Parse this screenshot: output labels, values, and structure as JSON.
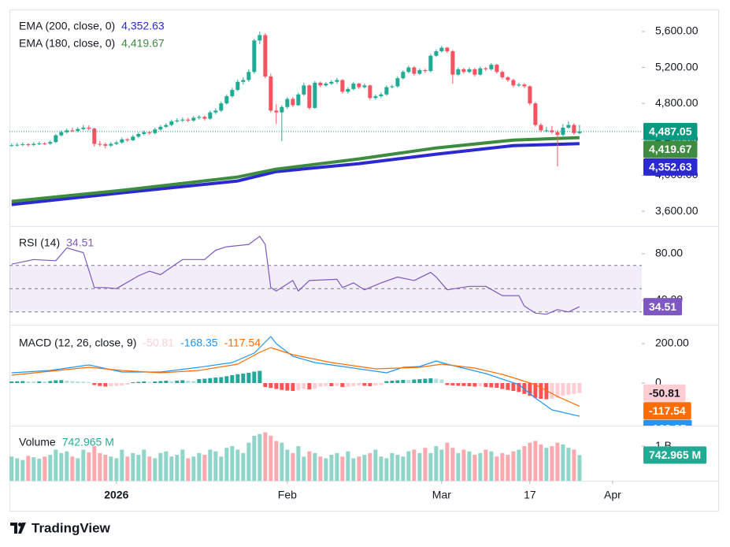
{
  "chart_data": [
    {
      "type": "candlestick",
      "ylim": [
        3434,
        5845
      ],
      "yticks": [
        {
          "value": 3600,
          "label": "3,600.00"
        },
        {
          "value": 4000,
          "label": "4,000.00"
        },
        {
          "value": 4400,
          "label": "4,400.00"
        },
        {
          "value": 4800,
          "label": "4,800.00"
        },
        {
          "value": 5200,
          "label": "5,200.00"
        },
        {
          "value": 5600,
          "label": "5,600.00"
        }
      ],
      "up_color": "#22ab94",
      "down_color": "#f7525f",
      "last_color": "#089981",
      "ohlc": [
        [
          4330,
          4355,
          4315,
          4335
        ],
        [
          4335,
          4360,
          4320,
          4340
        ],
        [
          4340,
          4365,
          4325,
          4345
        ],
        [
          4345,
          4360,
          4320,
          4338
        ],
        [
          4338,
          4370,
          4325,
          4350
        ],
        [
          4350,
          4375,
          4335,
          4355
        ],
        [
          4355,
          4370,
          4335,
          4352
        ],
        [
          4352,
          4390,
          4340,
          4370
        ],
        [
          4370,
          4460,
          4360,
          4445
        ],
        [
          4445,
          4500,
          4430,
          4480
        ],
        [
          4480,
          4520,
          4465,
          4500
        ],
        [
          4500,
          4530,
          4480,
          4495
        ],
        [
          4495,
          4535,
          4480,
          4515
        ],
        [
          4515,
          4560,
          4500,
          4530
        ],
        [
          4530,
          4555,
          4500,
          4520
        ],
        [
          4520,
          4530,
          4320,
          4350
        ],
        [
          4350,
          4380,
          4320,
          4345
        ],
        [
          4345,
          4365,
          4300,
          4330
        ],
        [
          4330,
          4370,
          4315,
          4350
        ],
        [
          4350,
          4385,
          4335,
          4365
        ],
        [
          4365,
          4420,
          4350,
          4400
        ],
        [
          4400,
          4415,
          4370,
          4390
        ],
        [
          4390,
          4450,
          4380,
          4430
        ],
        [
          4430,
          4480,
          4415,
          4460
        ],
        [
          4460,
          4500,
          4445,
          4480
        ],
        [
          4480,
          4495,
          4450,
          4470
        ],
        [
          4470,
          4530,
          4455,
          4510
        ],
        [
          4510,
          4560,
          4495,
          4540
        ],
        [
          4540,
          4580,
          4525,
          4560
        ],
        [
          4560,
          4620,
          4545,
          4600
        ],
        [
          4600,
          4635,
          4585,
          4610
        ],
        [
          4610,
          4645,
          4590,
          4620
        ],
        [
          4620,
          4640,
          4590,
          4610
        ],
        [
          4610,
          4660,
          4595,
          4640
        ],
        [
          4640,
          4670,
          4620,
          4650
        ],
        [
          4650,
          4665,
          4610,
          4630
        ],
        [
          4630,
          4720,
          4615,
          4700
        ],
        [
          4700,
          4745,
          4680,
          4720
        ],
        [
          4720,
          4820,
          4705,
          4800
        ],
        [
          4800,
          4900,
          4785,
          4880
        ],
        [
          4880,
          4975,
          4865,
          4950
        ],
        [
          4950,
          5065,
          4935,
          5040
        ],
        [
          5040,
          5090,
          5010,
          5060
        ],
        [
          5060,
          5180,
          5040,
          5150
        ],
        [
          5150,
          5520,
          5130,
          5500
        ],
        [
          5500,
          5600,
          5460,
          5560
        ],
        [
          5560,
          5580,
          5080,
          5100
        ],
        [
          5100,
          5130,
          4700,
          4720
        ],
        [
          4720,
          4790,
          4570,
          4700
        ],
        [
          4700,
          4780,
          4380,
          4760
        ],
        [
          4760,
          4870,
          4740,
          4850
        ],
        [
          4850,
          4870,
          4760,
          4780
        ],
        [
          4780,
          4920,
          4770,
          4900
        ],
        [
          4900,
          5030,
          4885,
          5000
        ],
        [
          5000,
          5010,
          4730,
          4750
        ],
        [
          4750,
          5050,
          4740,
          5030
        ],
        [
          5030,
          5045,
          4980,
          5000
        ],
        [
          5000,
          5040,
          4985,
          5020
        ],
        [
          5020,
          5060,
          5005,
          5040
        ],
        [
          5040,
          5085,
          5020,
          5060
        ],
        [
          5060,
          5070,
          4910,
          4930
        ],
        [
          4930,
          4980,
          4910,
          4960
        ],
        [
          4960,
          5040,
          4945,
          5020
        ],
        [
          5020,
          5030,
          4960,
          4980
        ],
        [
          4980,
          5020,
          4965,
          5000
        ],
        [
          5000,
          5010,
          4840,
          4860
        ],
        [
          4860,
          4900,
          4840,
          4880
        ],
        [
          4880,
          4920,
          4860,
          4900
        ],
        [
          4900,
          5000,
          4885,
          4980
        ],
        [
          4980,
          5010,
          4965,
          4990
        ],
        [
          4990,
          5100,
          4975,
          5080
        ],
        [
          5080,
          5170,
          5065,
          5150
        ],
        [
          5150,
          5220,
          5135,
          5200
        ],
        [
          5200,
          5215,
          5110,
          5130
        ],
        [
          5130,
          5190,
          5115,
          5170
        ],
        [
          5170,
          5185,
          5140,
          5160
        ],
        [
          5160,
          5350,
          5145,
          5330
        ],
        [
          5330,
          5400,
          5315,
          5380
        ],
        [
          5380,
          5440,
          5365,
          5420
        ],
        [
          5420,
          5430,
          5360,
          5380
        ],
        [
          5380,
          5395,
          5020,
          5120
        ],
        [
          5120,
          5200,
          5105,
          5180
        ],
        [
          5180,
          5195,
          5130,
          5150
        ],
        [
          5150,
          5200,
          5135,
          5180
        ],
        [
          5180,
          5195,
          5100,
          5120
        ],
        [
          5120,
          5210,
          5105,
          5190
        ],
        [
          5190,
          5205,
          5160,
          5180
        ],
        [
          5180,
          5250,
          5165,
          5230
        ],
        [
          5230,
          5240,
          5130,
          5150
        ],
        [
          5150,
          5165,
          5070,
          5090
        ],
        [
          5090,
          5100,
          5040,
          5060
        ],
        [
          5060,
          5075,
          4980,
          5000
        ],
        [
          5000,
          5030,
          4985,
          5010
        ],
        [
          5010,
          5025,
          4970,
          4990
        ],
        [
          4990,
          5000,
          4780,
          4800
        ],
        [
          4800,
          4815,
          4540,
          4560
        ],
        [
          4560,
          4580,
          4480,
          4500
        ],
        [
          4500,
          4540,
          4480,
          4500
        ],
        [
          4500,
          4550,
          4460,
          4480
        ],
        [
          4480,
          4500,
          4100,
          4450
        ],
        [
          4450,
          4570,
          4435,
          4530
        ],
        [
          4530,
          4600,
          4515,
          4560
        ],
        [
          4560,
          4580,
          4450,
          4470
        ],
        [
          4470,
          4560,
          4455,
          4487.05
        ]
      ],
      "last_label": "4,487.05",
      "series": [
        {
          "name": "EMA (200, close, 0)",
          "color": "#2a2ad0",
          "x": [
            0,
            20,
            41,
            48,
            63,
            77,
            91,
            103
          ],
          "values": [
            3675,
            3806,
            3937,
            4042,
            4130,
            4235,
            4331,
            4352.63
          ],
          "last_label": "4,352.63"
        },
        {
          "name": "EMA (180, close, 0)",
          "color": "#3d8c40",
          "x": [
            0,
            20,
            41,
            48,
            63,
            77,
            91,
            103
          ],
          "values": [
            3710,
            3833,
            3981,
            4069,
            4183,
            4305,
            4392,
            4419.67
          ],
          "last_label": "4,419.67"
        }
      ]
    },
    {
      "type": "line",
      "title": "RSI (14)",
      "ylim": [
        19,
        103
      ],
      "yticks": [
        {
          "value": 40,
          "label": "40.00"
        },
        {
          "value": 80,
          "label": "80.00"
        }
      ],
      "band": [
        30,
        70
      ],
      "midline": 50,
      "band_color": "#7e57c2",
      "series": [
        {
          "color": "#7e57c2",
          "x": [
            0,
            4,
            8,
            10,
            13,
            15,
            17,
            19,
            23,
            25,
            27,
            31,
            35,
            37,
            39,
            43,
            45,
            46,
            47,
            48,
            51,
            52,
            54,
            59,
            60,
            62,
            64,
            67,
            70,
            73,
            76,
            77,
            79,
            83,
            86,
            89,
            92,
            93,
            95,
            97,
            99,
            101,
            103
          ],
          "values": [
            71,
            75,
            74,
            85,
            81,
            51,
            51,
            50,
            61,
            65,
            62,
            75,
            75,
            83,
            86,
            88,
            95,
            88,
            51,
            48,
            57,
            48,
            57,
            58,
            51,
            55,
            49,
            55,
            60,
            57,
            64,
            60,
            49,
            52,
            52,
            44,
            44,
            35,
            29,
            28,
            32,
            30,
            34.51
          ]
        }
      ]
    },
    {
      "type": "macd",
      "title": "MACD (12, 26, close, 9)",
      "ylim": [
        -216,
        292
      ],
      "yticks": [
        0,
        {
          "value": 200,
          "label": "200.00"
        }
      ],
      "histogram": {
        "colors": [
          "#26a69a",
          "#b2dfdb",
          "#ffcdd2",
          "#ff5252"
        ],
        "values": [
          8,
          9,
          10,
          8,
          7,
          9,
          8,
          10,
          14,
          15,
          12,
          10,
          8,
          7,
          5,
          -10,
          -15,
          -18,
          -16,
          -14,
          -12,
          -8,
          4,
          6,
          8,
          6,
          8,
          10,
          12,
          10,
          12,
          14,
          12,
          10,
          20,
          22,
          25,
          28,
          30,
          35,
          40,
          45,
          48,
          52,
          58,
          62,
          -20,
          -25,
          -30,
          -35,
          -38,
          -40,
          -35,
          -30,
          -32,
          -28,
          -18,
          -15,
          -16,
          -14,
          -20,
          -18,
          -15,
          -12,
          -14,
          -16,
          -12,
          -10,
          10,
          12,
          14,
          16,
          15,
          18,
          20,
          22,
          24,
          22,
          18,
          -10,
          -12,
          -14,
          -15,
          -16,
          -18,
          -17,
          -20,
          -22,
          -24,
          -30,
          -35,
          -40,
          -45,
          -55,
          -65,
          -75,
          -80,
          -82,
          -80,
          -75,
          -65,
          -60,
          -55,
          -50.81
        ]
      },
      "series": [
        {
          "color": "#2196f3",
          "x": [
            0,
            7,
            14,
            20,
            27,
            34,
            40,
            44,
            47,
            48,
            51,
            55,
            63,
            68,
            71,
            74,
            77,
            79,
            86,
            92,
            95,
            98,
            103
          ],
          "values": [
            52,
            64,
            92,
            56,
            56,
            80,
            104,
            152,
            236,
            200,
            136,
            104,
            72,
            52,
            80,
            84,
            112,
            96,
            48,
            -8,
            -76,
            -136,
            -168.35
          ]
        },
        {
          "color": "#ff6d00",
          "x": [
            0,
            14,
            20,
            27,
            34,
            41,
            45,
            47,
            51,
            58,
            66,
            74,
            78,
            84,
            89,
            95,
            99,
            103
          ],
          "values": [
            40,
            80,
            64,
            52,
            64,
            96,
            156,
            180,
            144,
            104,
            72,
            80,
            96,
            76,
            44,
            -8,
            -68,
            -117.54
          ]
        }
      ]
    },
    {
      "type": "bar",
      "title": "Volume",
      "ylim": [
        0,
        1570
      ],
      "yticks": [
        {
          "value": 1000,
          "label": "1 B"
        }
      ],
      "values": [
        700,
        650,
        600,
        720,
        680,
        640,
        700,
        750,
        900,
        800,
        850,
        700,
        650,
        900,
        820,
        1000,
        800,
        750,
        700,
        650,
        900,
        700,
        800,
        750,
        900,
        700,
        650,
        800,
        850,
        700,
        750,
        900,
        650,
        700,
        800,
        750,
        900,
        850,
        700,
        950,
        1000,
        900,
        800,
        1100,
        1300,
        1350,
        1400,
        1300,
        1150,
        1100,
        900,
        800,
        1000,
        700,
        850,
        800,
        700,
        650,
        750,
        800,
        700,
        850,
        650,
        700,
        750,
        800,
        900,
        700,
        650,
        800,
        750,
        700,
        850,
        900,
        800,
        950,
        800,
        1000,
        900,
        1100,
        950,
        800,
        900,
        850,
        750,
        800,
        900,
        850,
        700,
        800,
        750,
        850,
        900,
        1000,
        1100,
        1150,
        1050,
        950,
        1000,
        1100,
        1050,
        950,
        900,
        742.965
      ],
      "last_label": "742.965 M",
      "last_color": "#22ab94",
      "xlim": [
        -0.4,
        114.3
      ],
      "xticks": [
        {
          "value": 19,
          "label": "2026"
        },
        {
          "value": 50,
          "label": "Feb"
        },
        {
          "value": 78,
          "label": "Mar"
        },
        {
          "value": 94,
          "label": "17"
        },
        {
          "value": 109,
          "label": "Apr"
        }
      ]
    }
  ],
  "brand": "TradingView"
}
